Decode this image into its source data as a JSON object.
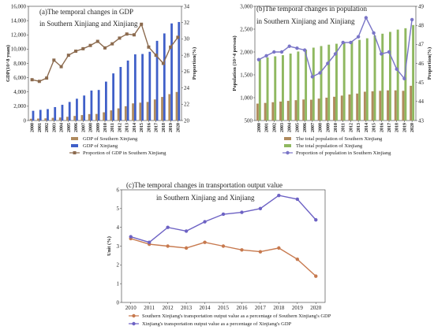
{
  "chart_data": [
    {
      "type": "bar",
      "panel": "a",
      "title": "(a)The temporal changes in GDP",
      "subtitle": "in Southern Xinjiang and Xinjiang",
      "ylabel": "GDP(10^8 yuan)",
      "ylabel_right": "Proportion(%)",
      "ylim": [
        0,
        16000
      ],
      "ylim_right": [
        20,
        34
      ],
      "yticks": [
        "0",
        "2,000",
        "4,000",
        "6,000",
        "8,000",
        "10,000",
        "12,000",
        "14,000",
        "16,000"
      ],
      "yticks_right": [
        "20",
        "22",
        "24",
        "26",
        "28",
        "30",
        "32",
        "34"
      ],
      "categories": [
        "2000",
        "2001",
        "2002",
        "2003",
        "2004",
        "2005",
        "2006",
        "2007",
        "2008",
        "2009",
        "2010",
        "2011",
        "2012",
        "2013",
        "2014",
        "2015",
        "2016",
        "2017",
        "2018",
        "2019",
        "2020"
      ],
      "series": [
        {
          "name": "GDP of Southern Xinjiang",
          "kind": "bar",
          "color": "#b08b5e",
          "values": [
            245,
            275,
            305,
            375,
            420,
            520,
            640,
            760,
            900,
            920,
            1150,
            1420,
            1700,
            2000,
            2400,
            2500,
            2600,
            2950,
            3300,
            3700,
            4000
          ]
        },
        {
          "name": "GDP of Xinjiang",
          "kind": "bar",
          "color": "#3f5fc8",
          "values": [
            1360,
            1490,
            1600,
            1880,
            2200,
            2600,
            3050,
            3500,
            4200,
            4280,
            5450,
            6600,
            7500,
            8400,
            9270,
            9320,
            9630,
            11160,
            12200,
            13600,
            13800
          ]
        },
        {
          "name": "Proportion of GDP in Southern Xinjiang",
          "kind": "line",
          "axis": "right",
          "color": "#8b6a4e",
          "values": [
            25.0,
            24.8,
            25.2,
            27.4,
            26.6,
            28.0,
            28.5,
            28.8,
            29.2,
            29.7,
            28.9,
            29.4,
            30.1,
            30.6,
            30.5,
            31.8,
            29.0,
            28.0,
            27.0,
            29.0,
            30.2
          ]
        }
      ]
    },
    {
      "type": "bar",
      "panel": "b",
      "title": "(b)The temporal changes in population",
      "subtitle": "in Southern Xinjiang and Xinjiang",
      "ylabel": "Population (10^4 person)",
      "ylabel_right": "Proportion(%)",
      "ylim": [
        500,
        3000
      ],
      "ylim_right": [
        43,
        49
      ],
      "yticks": [
        "500",
        "1,000",
        "1,500",
        "2,000",
        "2,500",
        "3,000"
      ],
      "yticks_right": [
        "43",
        "44",
        "45",
        "46",
        "47",
        "48",
        "49"
      ],
      "categories": [
        "2000",
        "2001",
        "2002",
        "2003",
        "2004",
        "2005",
        "2006",
        "2007",
        "2008",
        "2009",
        "2010",
        "2011",
        "2012",
        "2013",
        "2014",
        "2015",
        "2016",
        "2017",
        "2018",
        "2019",
        "2020"
      ],
      "series": [
        {
          "name": "The total population of Southern Xinjiang",
          "kind": "bar",
          "color": "#b08b5e",
          "values": [
            870,
            885,
            900,
            915,
            930,
            945,
            960,
            955,
            980,
            1000,
            1020,
            1045,
            1070,
            1090,
            1130,
            1140,
            1150,
            1160,
            1160,
            1150,
            1260
          ]
        },
        {
          "name": "The total population of Xinjiang",
          "kind": "bar",
          "color": "#8fb860",
          "values": [
            1850,
            1880,
            1905,
            1930,
            1965,
            2010,
            2050,
            2095,
            2130,
            2160,
            2180,
            2210,
            2230,
            2265,
            2300,
            2360,
            2400,
            2440,
            2490,
            2520,
            2590
          ]
        },
        {
          "name": "Proportion of population in Southern Xinjiang",
          "kind": "line",
          "axis": "right",
          "color": "#7a75c7",
          "values": [
            46.2,
            46.4,
            46.6,
            46.6,
            46.9,
            46.8,
            46.7,
            45.3,
            45.5,
            46.0,
            46.5,
            47.1,
            47.1,
            47.4,
            48.4,
            47.6,
            46.5,
            46.6,
            45.7,
            45.2,
            48.3
          ]
        }
      ]
    },
    {
      "type": "line",
      "panel": "c",
      "title": "(c)The temporal changes in transportation output value",
      "subtitle": "in Southern Xinjiang and Xinjiang",
      "ylabel": "Unit (%)",
      "ylim": [
        0,
        6
      ],
      "yticks": [
        "0",
        "1",
        "2",
        "3",
        "4",
        "5",
        "6"
      ],
      "categories": [
        "2010",
        "2011",
        "2012",
        "2013",
        "2014",
        "2015",
        "2016",
        "2017",
        "2018",
        "2019",
        "2020"
      ],
      "series": [
        {
          "name": "Southern Xinjiang's transportation output value as a percentage of Southern Xinjiang's GDP",
          "color": "#c7794e",
          "values": [
            3.4,
            3.1,
            3.0,
            2.9,
            3.2,
            3.0,
            2.8,
            2.7,
            2.9,
            2.3,
            1.4
          ]
        },
        {
          "name": "Xinjiang's transportation output value as a percentage of Xinjiang's GDP",
          "color": "#6d62c4",
          "values": [
            3.5,
            3.2,
            4.0,
            3.8,
            4.3,
            4.7,
            4.8,
            5.0,
            5.7,
            5.5,
            4.4
          ]
        }
      ]
    }
  ]
}
